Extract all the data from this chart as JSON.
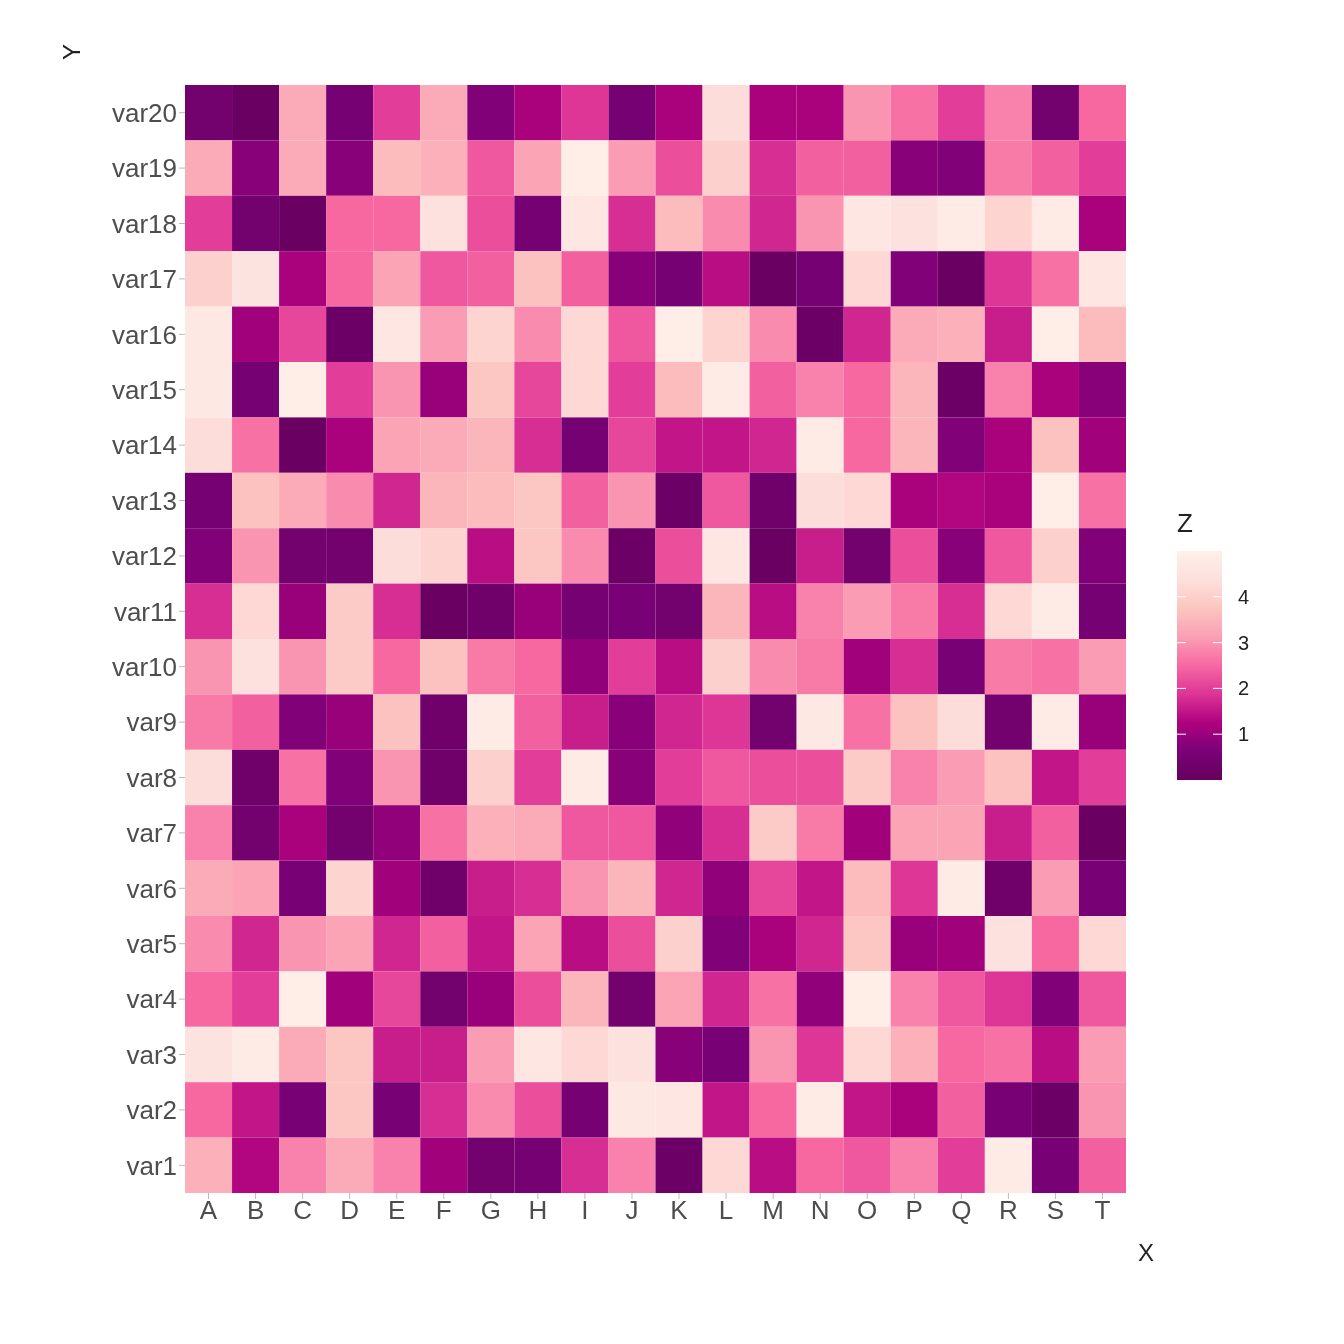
{
  "chart_data": {
    "type": "heatmap",
    "xlabel": "X",
    "ylabel": "Y",
    "clabel": "Z",
    "categories": [
      "A",
      "B",
      "C",
      "D",
      "E",
      "F",
      "G",
      "H",
      "I",
      "J",
      "K",
      "L",
      "M",
      "N",
      "O",
      "P",
      "Q",
      "R",
      "S",
      "T"
    ],
    "y_categories": [
      "var20",
      "var19",
      "var18",
      "var17",
      "var16",
      "var15",
      "var14",
      "var13",
      "var12",
      "var11",
      "var10",
      "var9",
      "var8",
      "var7",
      "var6",
      "var5",
      "var4",
      "var3",
      "var2",
      "var1"
    ],
    "clim": [
      0,
      5
    ],
    "cticks": [
      1,
      2,
      3,
      4
    ],
    "cells": [
      [
        0.4,
        0.1,
        3.3,
        0.5,
        2.0,
        3.3,
        0.7,
        1.2,
        1.9,
        0.5,
        1.2,
        4.3,
        1.2,
        1.2,
        3.0,
        2.6,
        2.0,
        2.8,
        0.4,
        2.5
      ],
      [
        3.3,
        0.8,
        3.3,
        0.8,
        3.6,
        3.4,
        2.3,
        3.2,
        4.9,
        3.1,
        2.2,
        4.0,
        1.8,
        2.4,
        2.4,
        0.8,
        0.7,
        2.7,
        2.4,
        2.0
      ],
      [
        2.0,
        0.4,
        0.1,
        2.5,
        2.5,
        4.4,
        2.2,
        0.5,
        4.6,
        1.8,
        3.6,
        2.9,
        1.7,
        3.0,
        4.6,
        4.4,
        4.8,
        4.1,
        4.8,
        1.2
      ],
      [
        4.0,
        4.5,
        1.2,
        2.5,
        3.2,
        2.3,
        2.4,
        3.7,
        2.4,
        0.8,
        0.5,
        1.4,
        0.1,
        0.5,
        4.2,
        0.7,
        0.1,
        1.9,
        2.6,
        4.6
      ],
      [
        4.7,
        1.1,
        2.1,
        0.2,
        4.6,
        3.1,
        4.1,
        2.9,
        4.2,
        2.3,
        4.9,
        4.1,
        2.9,
        0.2,
        1.7,
        3.3,
        3.4,
        1.6,
        4.9,
        3.6
      ],
      [
        4.7,
        0.5,
        4.9,
        2.0,
        3.0,
        1.0,
        3.8,
        2.1,
        4.2,
        2.0,
        3.6,
        4.8,
        2.4,
        2.8,
        2.5,
        3.5,
        0.2,
        2.8,
        1.2,
        0.8
      ],
      [
        4.3,
        2.6,
        0.1,
        1.2,
        3.2,
        3.3,
        3.5,
        1.8,
        0.5,
        2.1,
        1.5,
        1.5,
        1.7,
        4.8,
        2.5,
        3.5,
        0.7,
        1.2,
        3.7,
        1.1
      ],
      [
        0.5,
        3.7,
        3.3,
        2.9,
        1.7,
        3.5,
        3.6,
        3.8,
        2.4,
        3.0,
        0.2,
        2.3,
        0.3,
        4.3,
        4.2,
        1.2,
        1.3,
        1.2,
        4.9,
        2.6
      ],
      [
        0.7,
        3.0,
        0.4,
        0.4,
        4.3,
        4.1,
        1.4,
        3.8,
        2.9,
        0.2,
        2.2,
        4.6,
        0.1,
        1.6,
        0.4,
        2.2,
        0.8,
        2.3,
        4.0,
        0.7
      ],
      [
        1.8,
        4.2,
        1.0,
        3.9,
        1.8,
        0.1,
        0.3,
        1.0,
        0.5,
        0.6,
        0.4,
        3.5,
        1.4,
        2.8,
        3.1,
        2.7,
        1.8,
        4.2,
        4.8,
        0.5
      ],
      [
        3.0,
        4.4,
        3.0,
        3.9,
        2.5,
        3.7,
        2.7,
        2.5,
        0.9,
        2.0,
        1.4,
        4.0,
        2.9,
        2.7,
        1.1,
        1.8,
        0.6,
        2.7,
        2.6,
        3.1
      ],
      [
        2.7,
        2.4,
        0.7,
        1.0,
        3.7,
        0.3,
        4.8,
        2.4,
        1.6,
        0.8,
        1.7,
        1.9,
        0.4,
        4.7,
        2.6,
        3.7,
        4.3,
        0.4,
        4.8,
        1.0
      ],
      [
        4.3,
        0.3,
        2.6,
        0.7,
        3.0,
        0.3,
        4.0,
        2.0,
        4.8,
        0.8,
        2.0,
        2.3,
        2.2,
        2.2,
        3.9,
        2.8,
        3.1,
        3.7,
        1.5,
        2.0
      ],
      [
        2.8,
        0.4,
        1.2,
        0.4,
        0.9,
        2.6,
        3.4,
        3.3,
        2.3,
        2.3,
        0.9,
        1.8,
        3.9,
        2.7,
        1.1,
        3.2,
        3.2,
        1.6,
        2.4,
        0.1
      ],
      [
        3.3,
        3.2,
        0.6,
        4.1,
        1.1,
        0.3,
        1.6,
        1.8,
        3.0,
        3.5,
        1.7,
        0.9,
        2.1,
        1.5,
        3.6,
        1.9,
        4.8,
        0.3,
        3.1,
        0.6
      ],
      [
        2.9,
        1.7,
        3.0,
        3.2,
        1.7,
        2.4,
        1.5,
        3.2,
        1.4,
        2.2,
        4.0,
        0.7,
        1.2,
        1.7,
        3.8,
        1.0,
        1.1,
        4.4,
        2.5,
        4.2
      ],
      [
        2.5,
        2.0,
        4.9,
        1.1,
        2.1,
        0.4,
        1.0,
        2.2,
        3.5,
        0.4,
        3.2,
        1.7,
        2.6,
        0.9,
        4.9,
        2.8,
        2.3,
        1.9,
        0.7,
        2.3
      ],
      [
        4.5,
        4.8,
        3.3,
        3.8,
        1.6,
        1.6,
        3.1,
        4.6,
        4.2,
        4.4,
        0.8,
        0.6,
        3.0,
        1.9,
        4.2,
        3.4,
        2.5,
        2.6,
        1.4,
        3.1
      ],
      [
        2.5,
        1.5,
        0.6,
        3.8,
        0.6,
        1.8,
        2.9,
        2.2,
        0.5,
        4.7,
        4.6,
        1.5,
        2.5,
        4.8,
        1.5,
        1.2,
        2.4,
        0.6,
        0.2,
        3.0
      ],
      [
        3.4,
        1.3,
        2.8,
        3.3,
        2.8,
        1.1,
        0.4,
        0.5,
        1.8,
        2.8,
        0.2,
        4.2,
        1.4,
        2.5,
        2.3,
        2.8,
        2.0,
        4.8,
        0.6,
        2.4
      ]
    ]
  }
}
